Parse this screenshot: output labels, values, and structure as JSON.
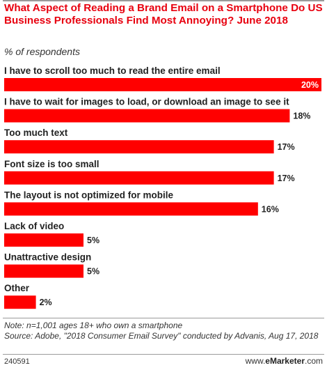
{
  "title": "What Aspect of Reading a Brand Email on a Smartphone Do US Business Professionals Find Most Annoying? June 2018",
  "subtitle": "% of respondents",
  "chart_data": {
    "type": "bar",
    "orientation": "horizontal",
    "categories": [
      "I have to scroll too much to read the entire email",
      "I have to wait for images to load, or download an image to see it",
      "Too much text",
      "Font size is too small",
      "The layout is not optimized for mobile",
      "Lack of video",
      "Unattractive design",
      "Other"
    ],
    "values": [
      20,
      18,
      17,
      17,
      16,
      5,
      5,
      2
    ],
    "value_labels": [
      "20%",
      "18%",
      "17%",
      "17%",
      "16%",
      "5%",
      "5%",
      "2%"
    ],
    "xlim": [
      0,
      20
    ],
    "bar_color": "#ff0000",
    "grid": false,
    "legend": "none"
  },
  "note": "Note: n=1,001 ages 18+ who own a smartphone",
  "source": "Source: Adobe, \"2018 Consumer Email Survey\" conducted by Advanis, Aug 17, 2018",
  "chart_id": "240591",
  "logo": {
    "prefix": "www.",
    "brand": "eMarketer",
    "suffix": ".com"
  }
}
